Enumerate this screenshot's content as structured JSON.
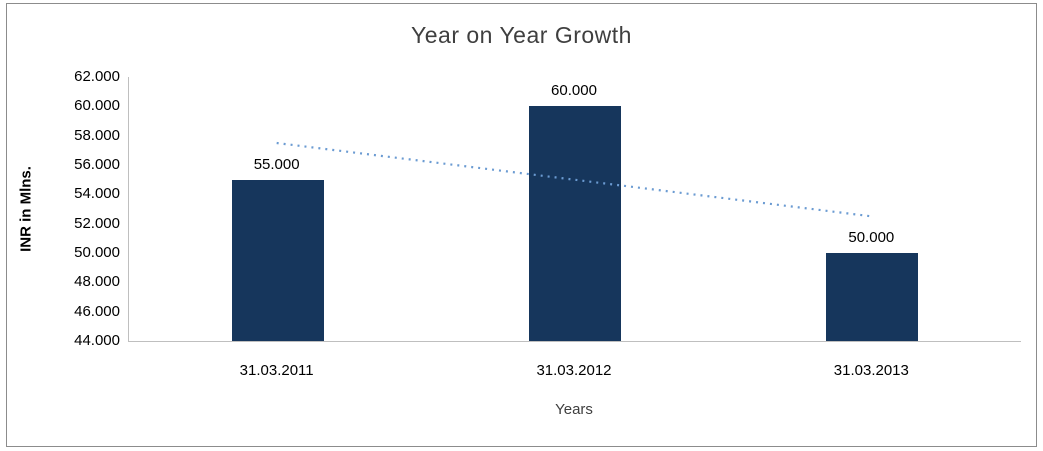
{
  "chart_data": {
    "type": "bar",
    "title": "Year on Year Growth",
    "xlabel": "Years",
    "ylabel": "INR in Mlns.",
    "categories": [
      "31.03.2011",
      "31.03.2012",
      "31.03.2013"
    ],
    "values": [
      55,
      60,
      50
    ],
    "data_labels": [
      "55.000",
      "60.000",
      "50.000"
    ],
    "ylim": [
      44,
      62
    ],
    "ytick_values": [
      44,
      46,
      48,
      50,
      52,
      54,
      56,
      58,
      60,
      62
    ],
    "ytick_labels": [
      "44.000",
      "46.000",
      "48.000",
      "50.000",
      "52.000",
      "54.000",
      "56.000",
      "58.000",
      "60.000",
      "62.000"
    ],
    "bar_color": "#16365c",
    "axis_line_color": "#bfbfbf",
    "title_color": "#3f3f3f",
    "grid": false,
    "legend": false,
    "trendline": {
      "style": "dotted",
      "color": "#6b9bd2",
      "start_value": 57.5,
      "end_value": 52.5
    }
  }
}
